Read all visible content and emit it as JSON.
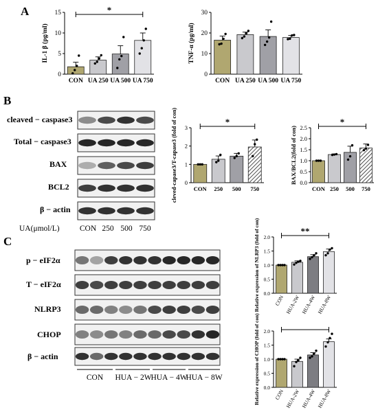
{
  "panels": {
    "A": "A",
    "B": "B",
    "C": "C"
  },
  "colors": {
    "con": "#b0a770",
    "g2": "#c9c9cd",
    "g3": "#a0a0a6",
    "g4": "#e2e2e6",
    "hua4": "#7d7d82",
    "edge": "#222222"
  },
  "blots": {
    "B": {
      "rows": [
        "cleaved − caspase3",
        "Total − caspase3",
        "BAX",
        "BCL2",
        "β − actin"
      ],
      "xaxis_label": "UA(μmol/L)",
      "lanes": [
        "CON",
        "250",
        "500",
        "750"
      ]
    },
    "C": {
      "rows": [
        "p − eIF2α",
        "T − eIF2α",
        "NLRP3",
        "CHOP",
        "β − actin"
      ],
      "groups": [
        "CON",
        "HUA − 2W",
        "HUA − 4W",
        "HUA − 8W"
      ]
    }
  },
  "chart_data": [
    {
      "id": "A1",
      "type": "bar",
      "categories": [
        "CON",
        "UA 250",
        "UA 500",
        "UA 750"
      ],
      "values": [
        1.8,
        3.4,
        4.9,
        8.2
      ],
      "errors": [
        1.1,
        0.8,
        2.0,
        1.8
      ],
      "points": [
        [
          0.2,
          1.0,
          2.0,
          4.5
        ],
        [
          2.6,
          3.0,
          3.8,
          4.6
        ],
        [
          1.5,
          3.6,
          4.4,
          9.0
        ],
        [
          5.0,
          6.3,
          8.2,
          11.0
        ]
      ],
      "ylabel": "IL-1 β (pg/ml)",
      "ylim": [
        0,
        15
      ],
      "yticks": [
        0,
        5,
        10,
        15
      ],
      "sig": [
        {
          "from": 0,
          "to": 3,
          "label": "*"
        }
      ]
    },
    {
      "id": "A2",
      "type": "bar",
      "categories": [
        "CON",
        "UA 250",
        "UA 500",
        "UA 750"
      ],
      "values": [
        16.5,
        19.2,
        18.3,
        17.8
      ],
      "errors": [
        2.0,
        1.2,
        3.2,
        1.0
      ],
      "points": [
        [
          14.5,
          14.8,
          17.2,
          19.5
        ],
        [
          17.5,
          18.3,
          19.8,
          21.0
        ],
        [
          14.2,
          15.8,
          17.8,
          25.5
        ],
        [
          17.0,
          17.2,
          18.8,
          19.0
        ]
      ],
      "ylabel": "TNF-α (pg/ml)",
      "ylim": [
        0,
        30
      ],
      "yticks": [
        0,
        10,
        20,
        30
      ],
      "sig": []
    },
    {
      "id": "B1",
      "type": "bar",
      "categories": [
        "CON",
        "250",
        "500",
        "750"
      ],
      "values": [
        1.0,
        1.28,
        1.45,
        1.95
      ],
      "errors": [
        0.0,
        0.18,
        0.15,
        0.38
      ],
      "points": [
        [
          1.0,
          1.0,
          1.0
        ],
        [
          1.12,
          1.2,
          1.52
        ],
        [
          1.35,
          1.45,
          1.6
        ],
        [
          1.45,
          2.1,
          2.35
        ]
      ],
      "ylabel": "cleved-capase3/T-capase3 (fold of con)",
      "ylim": [
        0,
        3
      ],
      "yticks": [
        0,
        1,
        2,
        3
      ],
      "sig": [
        {
          "from": 0,
          "to": 3,
          "label": "*"
        }
      ]
    },
    {
      "id": "B2",
      "type": "bar",
      "categories": [
        "CON",
        "250",
        "500",
        "750"
      ],
      "values": [
        1.0,
        1.28,
        1.38,
        1.58
      ],
      "errors": [
        0.0,
        0.03,
        0.28,
        0.18
      ],
      "points": [
        [
          1.0,
          1.0,
          1.0
        ],
        [
          1.26,
          1.28,
          1.3
        ],
        [
          1.05,
          1.2,
          1.7
        ],
        [
          1.48,
          1.55,
          1.72
        ]
      ],
      "ylabel": "BAX/BCL2(fold of con)",
      "ylim": [
        0,
        2.5
      ],
      "yticks": [
        0.0,
        0.5,
        1.0,
        1.5,
        2.0,
        2.5
      ],
      "sig": [
        {
          "from": 0,
          "to": 3,
          "label": "*"
        }
      ]
    },
    {
      "id": "C1",
      "type": "bar",
      "categories": [
        "CON",
        "HUA-2W",
        "HUA-4W",
        "HUA-8W"
      ],
      "values": [
        1.0,
        1.1,
        1.3,
        1.48
      ],
      "errors": [
        0.0,
        0.05,
        0.07,
        0.09
      ],
      "points": [
        [
          1.0,
          1.0,
          1.0,
          1.0
        ],
        [
          1.02,
          1.08,
          1.12,
          1.15
        ],
        [
          1.22,
          1.28,
          1.35,
          1.42
        ],
        [
          1.35,
          1.42,
          1.55,
          1.6
        ]
      ],
      "ylabel": "Relative expression of NLRP3 (fold of con)",
      "ylim": [
        0,
        2.0
      ],
      "yticks": [
        0.0,
        0.5,
        1.0,
        1.5,
        2.0
      ],
      "sig": [
        {
          "from": 0,
          "to": 3,
          "label": "**"
        }
      ]
    },
    {
      "id": "C2",
      "type": "bar",
      "categories": [
        "CON",
        "HUA-2W",
        "HUA-4W",
        "HUA-8W"
      ],
      "values": [
        1.0,
        0.92,
        1.15,
        1.62
      ],
      "errors": [
        0.0,
        0.08,
        0.08,
        0.1
      ],
      "points": [
        [
          1.0,
          1.0,
          1.0,
          1.0
        ],
        [
          0.75,
          0.9,
          0.95,
          1.05
        ],
        [
          1.05,
          1.1,
          1.2,
          1.3
        ],
        [
          1.45,
          1.6,
          1.75,
          1.9
        ]
      ],
      "ylabel": "Relative expression of CHOP (fold of con)",
      "ylim": [
        0,
        2.0
      ],
      "yticks": [
        0.0,
        0.5,
        1.0,
        1.5,
        2.0
      ],
      "sig": [
        {
          "from": 0,
          "to": 3,
          "label": ""
        }
      ]
    }
  ]
}
